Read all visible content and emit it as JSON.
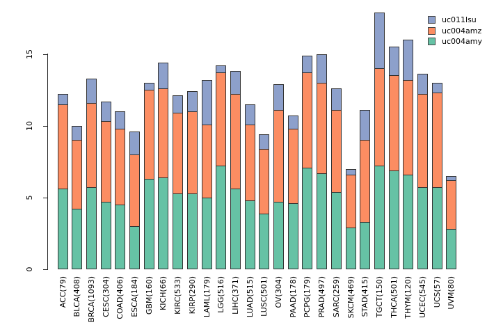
{
  "figure": {
    "background": "#ffffff",
    "axis_color": "#222222",
    "bar_border_color": "#333333"
  },
  "chart_data": {
    "type": "bar",
    "stacked": true,
    "title": "",
    "xlabel": "",
    "ylabel": "",
    "grid": false,
    "ylim": [
      0,
      18
    ],
    "yticks": [
      0,
      5,
      10,
      15
    ],
    "categories": [
      "ACC(79)",
      "BLCA(408)",
      "BRCA(1093)",
      "CESC(304)",
      "COAD(406)",
      "ESCA(184)",
      "GBM(160)",
      "KICH(66)",
      "KIRC(533)",
      "KIRP(290)",
      "LAML(179)",
      "LGG(516)",
      "LIHC(371)",
      "LUAD(515)",
      "LUSC(501)",
      "OV(304)",
      "PAAD(178)",
      "PCPG(179)",
      "PRAD(497)",
      "SARC(259)",
      "SKCM(469)",
      "STAD(415)",
      "TGCT(150)",
      "THCA(501)",
      "THYM(120)",
      "UCEC(545)",
      "UCS(57)",
      "UVM(80)"
    ],
    "series": [
      {
        "name": "uc004amy",
        "color": "#66c2a5",
        "stack_position": "bottom",
        "values": [
          5.6,
          4.2,
          5.7,
          4.7,
          4.5,
          3.0,
          6.3,
          6.4,
          5.3,
          5.3,
          5.0,
          7.2,
          5.6,
          4.8,
          3.9,
          4.7,
          4.6,
          7.1,
          6.7,
          5.4,
          2.9,
          3.3,
          7.2,
          6.9,
          6.6,
          5.7,
          5.7,
          2.8
        ]
      },
      {
        "name": "uc004amz",
        "color": "#fc8d62",
        "stack_position": "middle",
        "values": [
          5.9,
          4.8,
          5.9,
          5.6,
          5.3,
          5.0,
          6.2,
          6.2,
          5.6,
          5.7,
          5.1,
          6.5,
          6.6,
          5.3,
          4.5,
          6.4,
          5.2,
          6.6,
          6.3,
          5.7,
          3.7,
          5.7,
          6.8,
          6.6,
          6.6,
          6.5,
          6.6,
          3.4
        ]
      },
      {
        "name": "uc011lsu",
        "color": "#8da0cb",
        "stack_position": "top",
        "values": [
          0.7,
          1.0,
          1.7,
          1.4,
          1.2,
          1.6,
          0.5,
          1.8,
          1.2,
          1.4,
          3.1,
          0.5,
          1.6,
          1.4,
          1.0,
          1.8,
          0.9,
          1.2,
          2.0,
          1.5,
          0.4,
          2.1,
          3.9,
          2.0,
          2.8,
          1.4,
          0.7,
          0.3
        ]
      }
    ],
    "legend": {
      "position": "top-right",
      "entries": [
        {
          "label": "uc011lsu",
          "color": "#8da0cb"
        },
        {
          "label": "uc004amz",
          "color": "#fc8d62"
        },
        {
          "label": "uc004amy",
          "color": "#66c2a5"
        }
      ]
    }
  }
}
